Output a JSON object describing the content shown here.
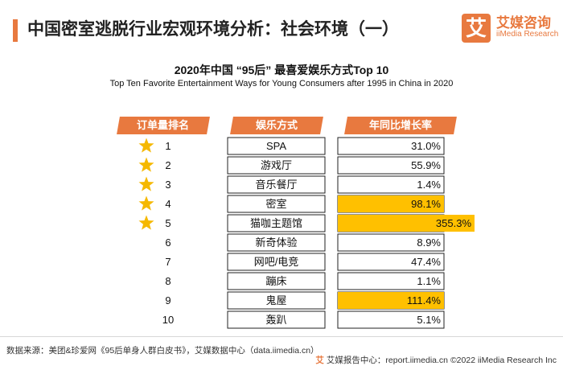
{
  "header": {
    "title": "中国密室逃脱行业宏观环境分析：社会环境（一）",
    "logo_badge": "艾",
    "logo_name": "艾媒咨询",
    "logo_en": "iiMedia Research"
  },
  "chart_data": {
    "type": "table",
    "title": "2020年中国 “95后” 最喜爱娱乐方式Top 10",
    "subtitle": "Top Ten Favorite Entertainment Ways for Young Consumers after 1995 in China in 2020",
    "columns": [
      "订单量排名",
      "娱乐方式",
      "年同比增长率"
    ],
    "rows": [
      {
        "rank": "1",
        "name": "SPA",
        "growth": "31.0%",
        "value": 31.0,
        "starred": true,
        "highlight": false
      },
      {
        "rank": "2",
        "name": "游戏厅",
        "growth": "55.9%",
        "value": 55.9,
        "starred": true,
        "highlight": false
      },
      {
        "rank": "3",
        "name": "音乐餐厅",
        "growth": "1.4%",
        "value": 1.4,
        "starred": true,
        "highlight": false
      },
      {
        "rank": "4",
        "name": "密室",
        "growth": "98.1%",
        "value": 98.1,
        "starred": true,
        "highlight": true
      },
      {
        "rank": "5",
        "name": "猫咖主题馆",
        "growth": "355.3%",
        "value": 355.3,
        "starred": true,
        "highlight": true
      },
      {
        "rank": "6",
        "name": "新奇体验",
        "growth": "8.9%",
        "value": 8.9,
        "starred": false,
        "highlight": false
      },
      {
        "rank": "7",
        "name": "网吧/电竞",
        "growth": "47.4%",
        "value": 47.4,
        "starred": false,
        "highlight": false
      },
      {
        "rank": "8",
        "name": "蹦床",
        "growth": "1.1%",
        "value": 1.1,
        "starred": false,
        "highlight": false
      },
      {
        "rank": "9",
        "name": "鬼屋",
        "growth": "111.4%",
        "value": 111.4,
        "starred": false,
        "highlight": true
      },
      {
        "rank": "10",
        "name": "轰趴",
        "growth": "5.1%",
        "value": 5.1,
        "starred": false,
        "highlight": false
      }
    ]
  },
  "colors": {
    "accent": "#e8793f",
    "highlight": "#ffc000",
    "star": "#f5b800",
    "cell_border": "#222222"
  },
  "footer": {
    "source": "数据来源：美团&珍爱网《95后单身人群白皮书》，艾媒数据中心（data.iimedia.cn）",
    "logo_text": "艾",
    "right_text": "艾媒报告中心：report.iimedia.cn    ©2022  iiMedia Research  Inc"
  }
}
